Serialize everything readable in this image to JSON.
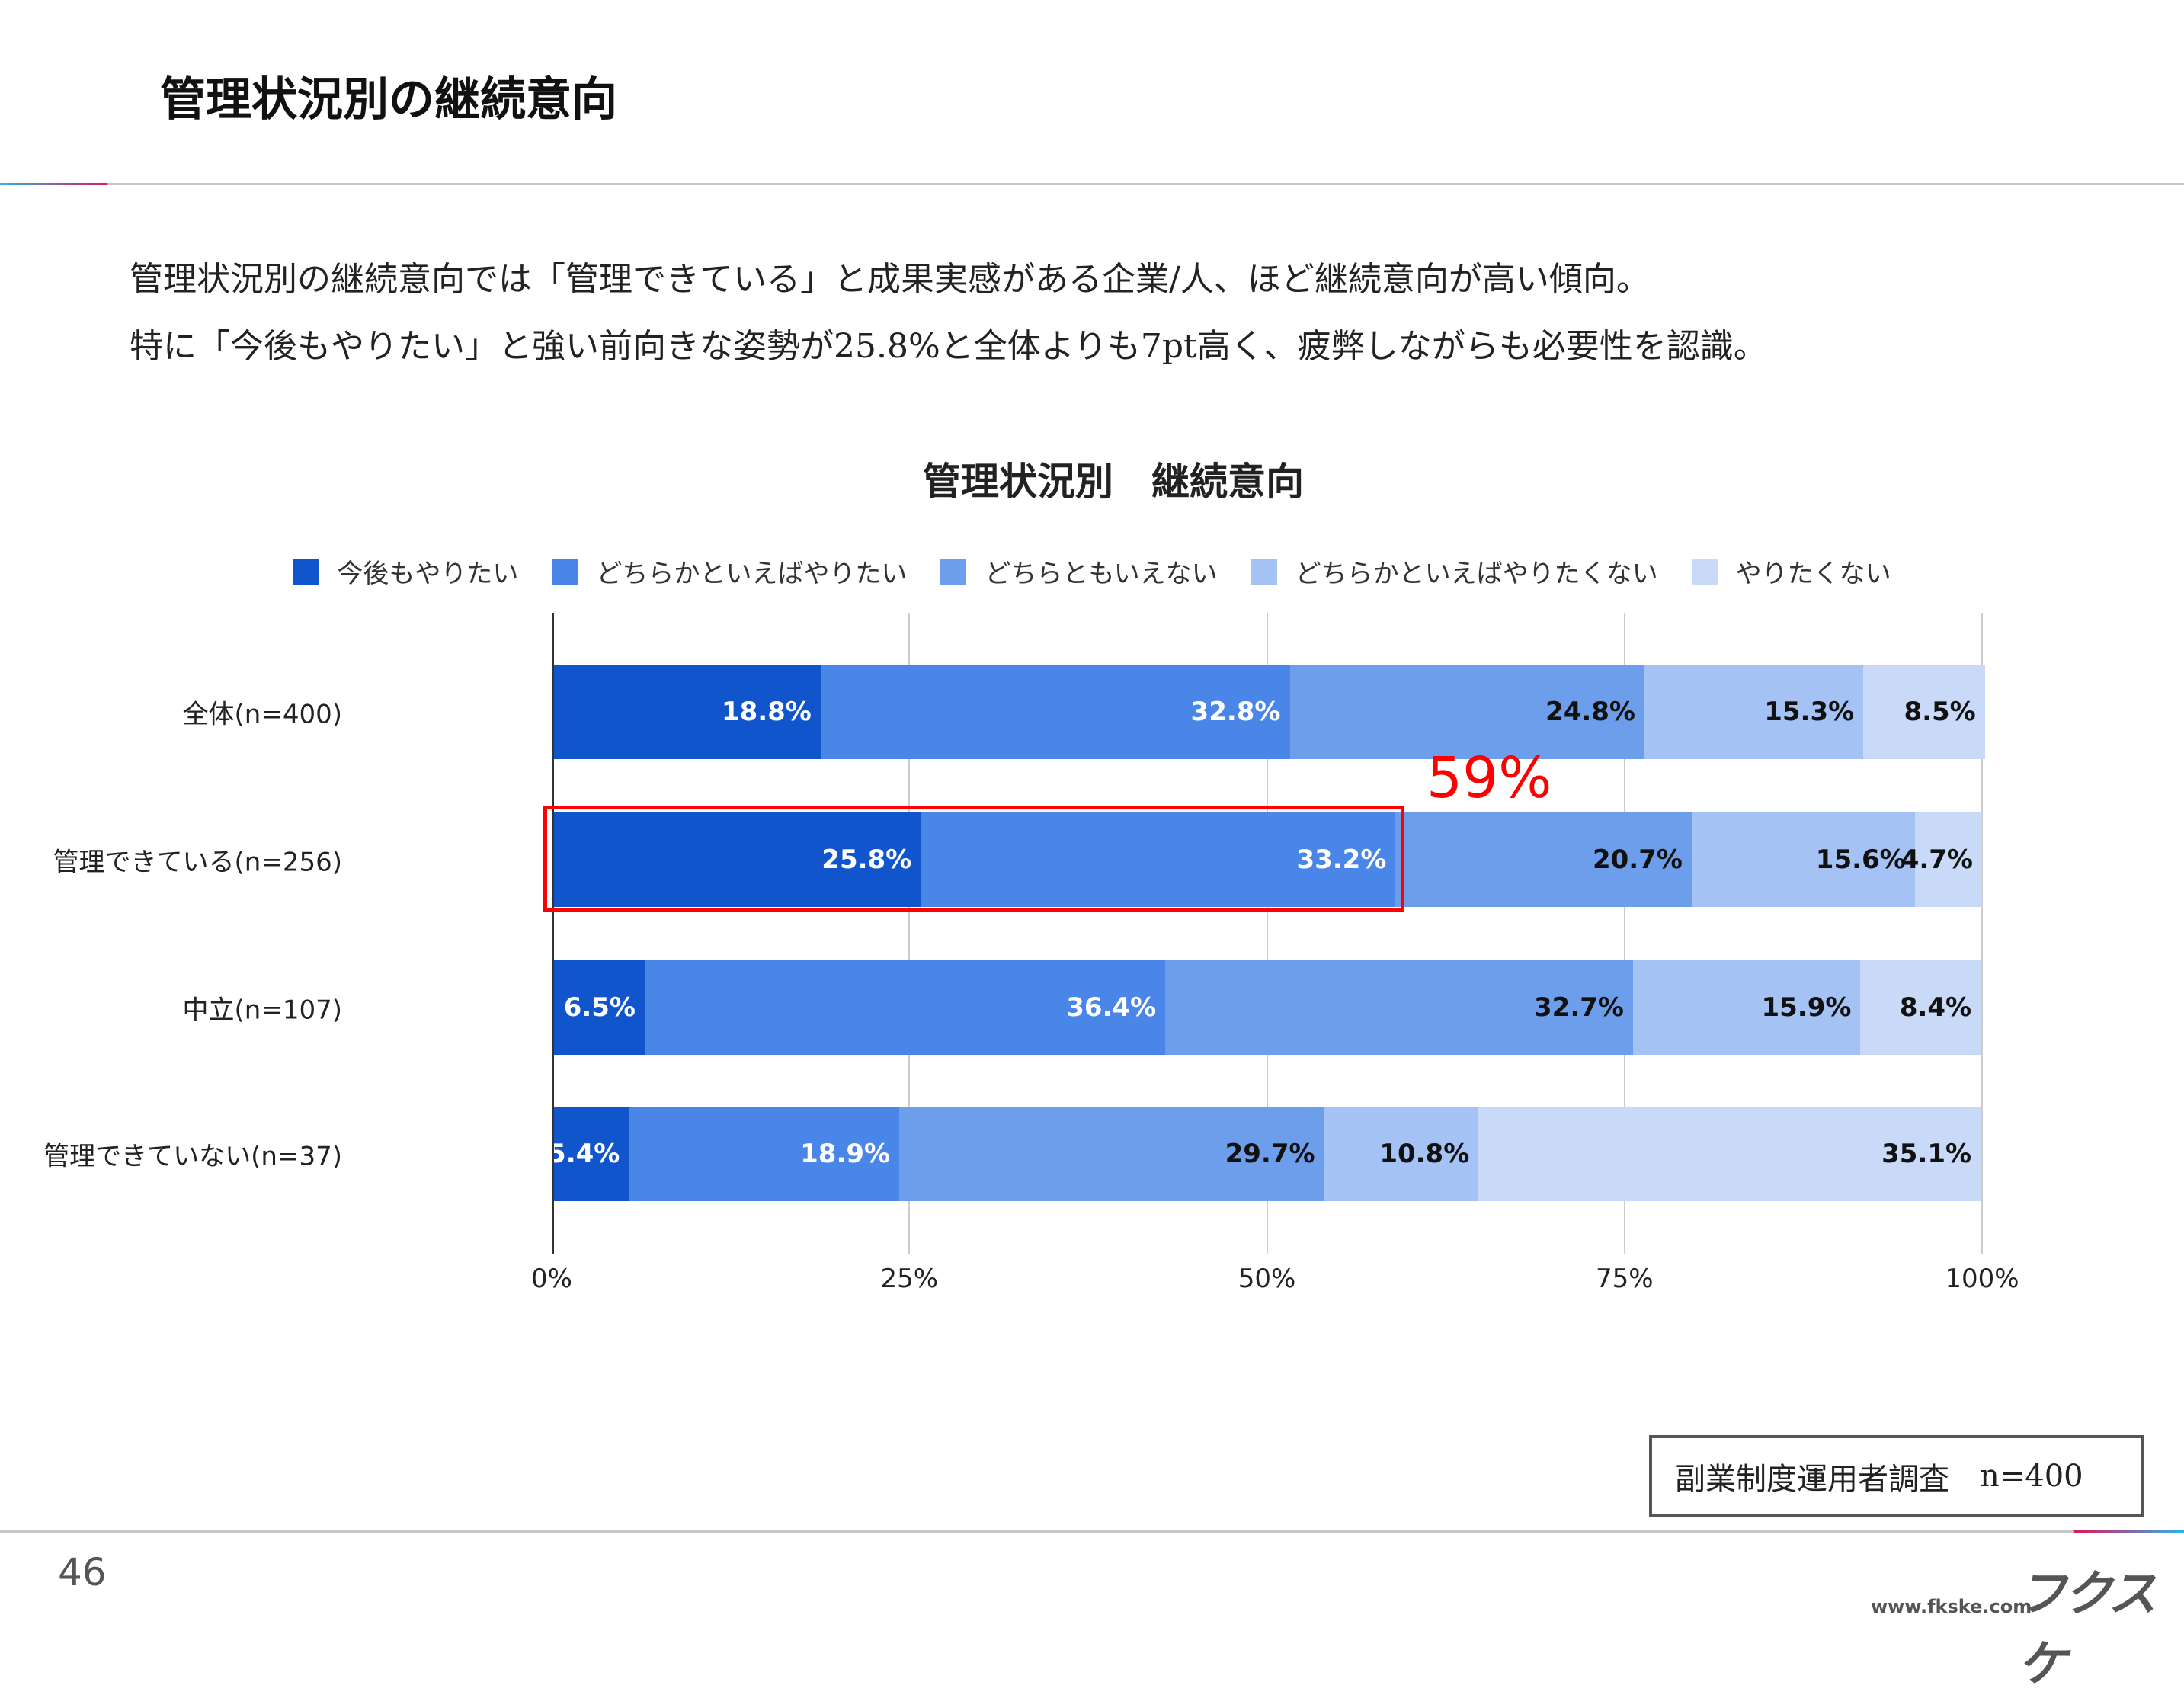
{
  "header": {
    "title": "管理状況別の継続意向"
  },
  "summary": [
    "管理状況別の継続意向では「管理できている」と成果実感がある企業/人、ほど継続意向が高い傾向。",
    "特に「今後もやりたい」と強い前向きな姿勢が25.8%と全体よりも7pt高く、疲弊しながらも必要性を認識。"
  ],
  "chart_data": {
    "type": "bar",
    "orientation": "horizontal",
    "stacked": true,
    "title": "管理状況別　継続意向",
    "categories": [
      "全体(n=400)",
      "管理できている(n=256)",
      "中立(n=107)",
      "管理できていない(n=37)"
    ],
    "series": [
      {
        "name": "今後もやりたい",
        "color": "#1155cc",
        "values": [
          18.8,
          25.8,
          6.5,
          5.4
        ],
        "labels": [
          "18.8%",
          "25.8%",
          "6.5%",
          "5.4%"
        ]
      },
      {
        "name": "どちらかといえばやりたい",
        "color": "#4a86e8",
        "values": [
          32.8,
          33.2,
          36.4,
          18.9
        ],
        "labels": [
          "32.8%",
          "33.2%",
          "36.4%",
          "18.9%"
        ]
      },
      {
        "name": "どちらともいえない",
        "color": "#6d9eeb",
        "values": [
          24.8,
          20.7,
          32.7,
          29.7
        ],
        "labels": [
          "24.8%",
          "20.7%",
          "32.7%",
          "29.7%"
        ]
      },
      {
        "name": "どちらかといえばやりたくない",
        "color": "#a4c2f4",
        "values": [
          15.3,
          15.6,
          15.9,
          10.8
        ],
        "labels": [
          "15.3%",
          "15.6%",
          "15.9%",
          "10.8%"
        ]
      },
      {
        "name": "やりたくない",
        "color": "#c9daf8",
        "values": [
          8.5,
          4.7,
          8.4,
          35.1
        ],
        "labels": [
          "8.5%",
          "4.7%",
          "8.4%",
          "35.1%"
        ]
      }
    ],
    "xlim": [
      0,
      100
    ],
    "xticks": [
      "0%",
      "25%",
      "50%",
      "75%",
      "100%"
    ],
    "grid": true,
    "legend": "top",
    "annotation": {
      "text": "59%",
      "color": "#ff0000"
    }
  },
  "source": {
    "label": "副業制度運用者調査",
    "n": "n=400"
  },
  "footer": {
    "page": "46",
    "logo": "フクスケ",
    "url": "www.fkske.com"
  }
}
